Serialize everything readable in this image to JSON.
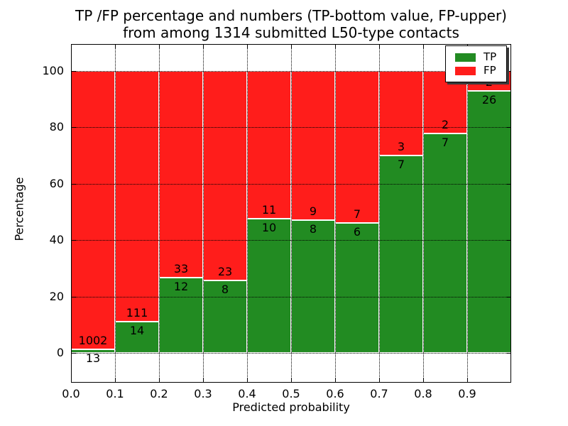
{
  "figure": {
    "title_line1": "TP /FP percentage and numbers (TP-bottom value, FP-upper)",
    "title_line2": "from among 1314 submitted L50-type contacts"
  },
  "chart_data": {
    "type": "bar",
    "stacked": true,
    "percent_normalized": true,
    "title": "TP /FP percentage and numbers (TP-bottom value, FP-upper)\nfrom among 1314 submitted L50-type contacts",
    "xlabel": "Predicted probability",
    "ylabel": "Percentage",
    "xlim": [
      0.0,
      1.0
    ],
    "ylim": [
      -10.5,
      109.5
    ],
    "grid": true,
    "bin_width": 0.1,
    "bin_starts": [
      0.0,
      0.1,
      0.2,
      0.3,
      0.4,
      0.5,
      0.6,
      0.7,
      0.8,
      0.9
    ],
    "xtick_values": [
      0.0,
      0.1,
      0.2,
      0.3,
      0.4,
      0.5,
      0.6,
      0.7,
      0.8,
      0.9
    ],
    "xtick_labels": [
      "0.0",
      "0.1",
      "0.2",
      "0.3",
      "0.4",
      "0.5",
      "0.6",
      "0.7",
      "0.8",
      "0.9"
    ],
    "ytick_values": [
      0,
      20,
      40,
      60,
      80,
      100
    ],
    "ytick_labels": [
      "0",
      "20",
      "40",
      "60",
      "80",
      "100"
    ],
    "legend_position": "upper right",
    "total_contacts": 1314,
    "series": [
      {
        "name": "TP",
        "color": "#228B22",
        "counts": [
          13,
          14,
          12,
          8,
          10,
          8,
          6,
          7,
          7,
          26
        ]
      },
      {
        "name": "FP",
        "color": "#FF1D1B",
        "counts": [
          1002,
          111,
          33,
          23,
          11,
          9,
          7,
          3,
          2,
          2
        ]
      }
    ]
  },
  "legend": {
    "items": [
      {
        "label": "TP",
        "color": "#228B22"
      },
      {
        "label": "FP",
        "color": "#FF1D1B"
      }
    ]
  },
  "colors": {
    "tp": "#228B22",
    "fp": "#FF1D1B",
    "bar_edge": "#ffffff",
    "frame": "#000000",
    "grid": "#000000",
    "background": "#ffffff"
  }
}
